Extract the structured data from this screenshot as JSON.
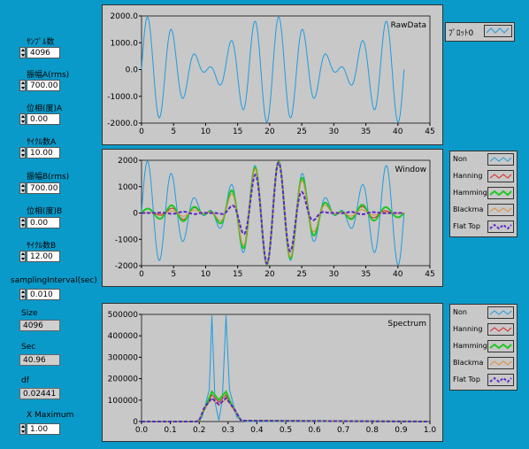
{
  "controls": {
    "samples": {
      "label": "ｻﾝﾌﾟﾙ数",
      "value": "4096"
    },
    "ampA": {
      "label": "振幅A(rms)",
      "value": "700.00"
    },
    "phaseA": {
      "label": "位相(度)A",
      "value": "0.00"
    },
    "cycA": {
      "label": "ｻｲｸﾙ数A",
      "value": "10.00"
    },
    "ampB": {
      "label": "振幅B(rms)",
      "value": "700.00"
    },
    "phaseB": {
      "label": "位相(度)B",
      "value": "0.00"
    },
    "cycB": {
      "label": "ｻｲｸﾙ数B",
      "value": "12.00"
    },
    "interval": {
      "label": "samplingInterval(sec)",
      "value": "0.010"
    },
    "size": {
      "label": "Size",
      "value": "4096"
    },
    "sec": {
      "label": "Sec",
      "value": "40.96"
    },
    "df": {
      "label": "df",
      "value": "0.02441"
    },
    "xmax": {
      "label": "X Maximum",
      "value": "1.00"
    }
  },
  "colors": {
    "non": "#1e9be0",
    "hanning": "#e0201e",
    "hamming": "#1ec81e",
    "blackman": "#e08a3a",
    "flattop": "#5a28c8"
  },
  "legend_top": {
    "label": "ﾌﾟﾛｯﾄ0"
  },
  "legend_windows": [
    "Non",
    "Hanning",
    "Hamming",
    "Blackma",
    "Flat Top"
  ],
  "chart_data": [
    {
      "type": "line",
      "title": "RawData",
      "xlabel": "",
      "ylabel": "",
      "xlim": [
        0,
        45
      ],
      "ylim": [
        -2000,
        2000
      ],
      "xticks": [
        "0",
        "5",
        "10",
        "15",
        "20",
        "25",
        "30",
        "35",
        "40",
        "45"
      ],
      "yticks": [
        "2000.0",
        "1000.0",
        "0.0",
        "-1000.0",
        "-2000.0"
      ],
      "series": [
        {
          "signal": "700*sqrt2*(sin(2π*10t/40.96)+sin(2π*12t/40.96))",
          "x_range": [
            0,
            40.96
          ]
        }
      ]
    },
    {
      "type": "line",
      "title": "Window",
      "xlim": [
        0,
        45
      ],
      "ylim": [
        -2000,
        2000
      ],
      "xticks": [
        "0",
        "5",
        "10",
        "15",
        "20",
        "25",
        "30",
        "35",
        "40",
        "45"
      ],
      "yticks": [
        "2000",
        "1000",
        "0",
        "-1000",
        "-2000"
      ],
      "series": [
        {
          "name": "Non"
        },
        {
          "name": "Hanning"
        },
        {
          "name": "Hamming"
        },
        {
          "name": "Blackma"
        },
        {
          "name": "Flat Top"
        }
      ]
    },
    {
      "type": "line",
      "title": "Spectrum",
      "xlim": [
        0,
        1.0
      ],
      "ylim": [
        0,
        500000
      ],
      "xticks": [
        "0.0",
        "0.1",
        "0.2",
        "0.3",
        "0.4",
        "0.5",
        "0.6",
        "0.7",
        "0.8",
        "0.9",
        "1.0"
      ],
      "yticks": [
        "500000",
        "400000",
        "300000",
        "200000",
        "100000",
        "0"
      ],
      "peaks": {
        "freqs": [
          0.244,
          0.293
        ],
        "Non": 495000,
        "Hanning": 125000,
        "Hamming": 140000,
        "Blackma": 105000,
        "Flat Top": 110000
      },
      "series": [
        {
          "name": "Non"
        },
        {
          "name": "Hanning"
        },
        {
          "name": "Hamming"
        },
        {
          "name": "Blackma"
        },
        {
          "name": "Flat Top"
        }
      ]
    }
  ]
}
